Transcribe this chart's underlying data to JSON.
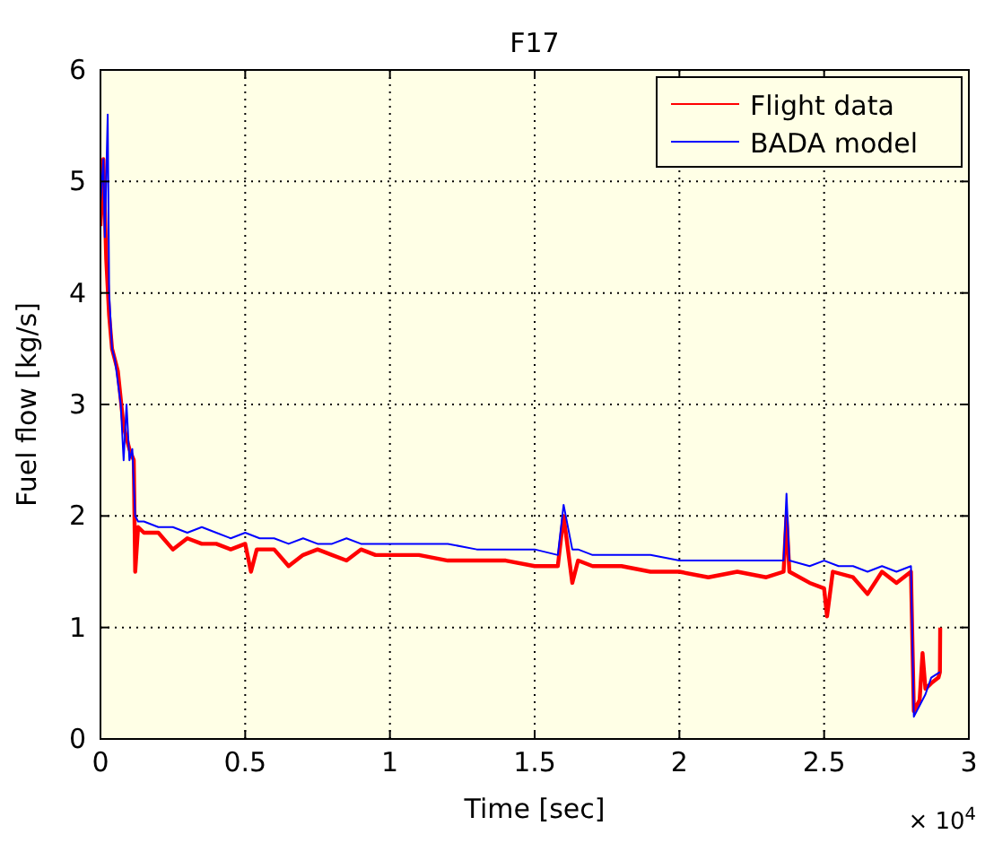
{
  "chart_data": {
    "type": "line",
    "title": "F17",
    "xlabel": "Time [sec]",
    "ylabel": "Fuel flow [kg/s]",
    "annotations": [
      "× 10$^{4}$"
    ],
    "xlim": [
      0,
      3
    ],
    "ylim": [
      0,
      6
    ],
    "xticks": [
      0,
      0.5,
      1,
      1.5,
      2,
      2.5,
      3
    ],
    "yticks": [
      0,
      1,
      2,
      3,
      4,
      5,
      6
    ],
    "grid": true,
    "legend": "top right",
    "line_style": "solid",
    "series": [
      {
        "name": "Flight data",
        "color": "#ff0000",
        "x": [
          0,
          0.01,
          0.02,
          0.03,
          0.04,
          0.06,
          0.08,
          0.1,
          0.115,
          0.12,
          0.13,
          0.15,
          0.2,
          0.25,
          0.3,
          0.35,
          0.4,
          0.45,
          0.5,
          0.52,
          0.54,
          0.6,
          0.65,
          0.7,
          0.75,
          0.8,
          0.85,
          0.9,
          0.95,
          1.0,
          1.1,
          1.2,
          1.3,
          1.4,
          1.5,
          1.58,
          1.6,
          1.63,
          1.65,
          1.7,
          1.8,
          1.9,
          2.0,
          2.1,
          2.2,
          2.3,
          2.36,
          2.37,
          2.38,
          2.45,
          2.5,
          2.51,
          2.53,
          2.6,
          2.65,
          2.7,
          2.75,
          2.8,
          2.81,
          2.83,
          2.84,
          2.85,
          2.87,
          2.895,
          2.9,
          2.901
        ],
        "values": [
          4.6,
          5.2,
          4.3,
          3.8,
          3.5,
          3.3,
          2.8,
          2.6,
          2.5,
          1.5,
          1.9,
          1.85,
          1.85,
          1.7,
          1.8,
          1.75,
          1.75,
          1.7,
          1.75,
          1.5,
          1.7,
          1.7,
          1.55,
          1.65,
          1.7,
          1.65,
          1.6,
          1.7,
          1.65,
          1.65,
          1.65,
          1.6,
          1.6,
          1.6,
          1.55,
          1.55,
          2.0,
          1.4,
          1.6,
          1.55,
          1.55,
          1.5,
          1.5,
          1.45,
          1.5,
          1.45,
          1.5,
          2.0,
          1.5,
          1.4,
          1.35,
          1.1,
          1.5,
          1.45,
          1.3,
          1.5,
          1.4,
          1.5,
          0.25,
          0.35,
          0.77,
          0.45,
          0.5,
          0.55,
          0.6,
          1.0
        ]
      },
      {
        "name": "BADA model",
        "color": "#0000ff",
        "x": [
          0,
          0.01,
          0.015,
          0.025,
          0.03,
          0.04,
          0.05,
          0.07,
          0.08,
          0.09,
          0.1,
          0.11,
          0.12,
          0.13,
          0.15,
          0.2,
          0.25,
          0.3,
          0.35,
          0.4,
          0.45,
          0.5,
          0.55,
          0.6,
          0.65,
          0.7,
          0.75,
          0.8,
          0.85,
          0.9,
          0.95,
          1.0,
          1.1,
          1.2,
          1.3,
          1.4,
          1.5,
          1.58,
          1.6,
          1.63,
          1.65,
          1.7,
          1.8,
          1.9,
          2.0,
          2.1,
          2.2,
          2.3,
          2.36,
          2.37,
          2.38,
          2.45,
          2.5,
          2.55,
          2.6,
          2.65,
          2.7,
          2.75,
          2.8,
          2.81,
          2.85,
          2.87,
          2.9
        ],
        "values": [
          4.8,
          5.2,
          4.5,
          5.6,
          4.0,
          3.5,
          3.4,
          3.0,
          2.5,
          3.0,
          2.5,
          2.6,
          2.0,
          1.95,
          1.95,
          1.9,
          1.9,
          1.85,
          1.9,
          1.85,
          1.8,
          1.85,
          1.8,
          1.8,
          1.75,
          1.8,
          1.75,
          1.75,
          1.8,
          1.75,
          1.75,
          1.75,
          1.75,
          1.75,
          1.7,
          1.7,
          1.7,
          1.65,
          2.1,
          1.7,
          1.7,
          1.65,
          1.65,
          1.65,
          1.6,
          1.6,
          1.6,
          1.6,
          1.6,
          2.2,
          1.6,
          1.55,
          1.6,
          1.55,
          1.55,
          1.5,
          1.55,
          1.5,
          1.55,
          0.2,
          0.4,
          0.55,
          0.6
        ]
      }
    ]
  }
}
